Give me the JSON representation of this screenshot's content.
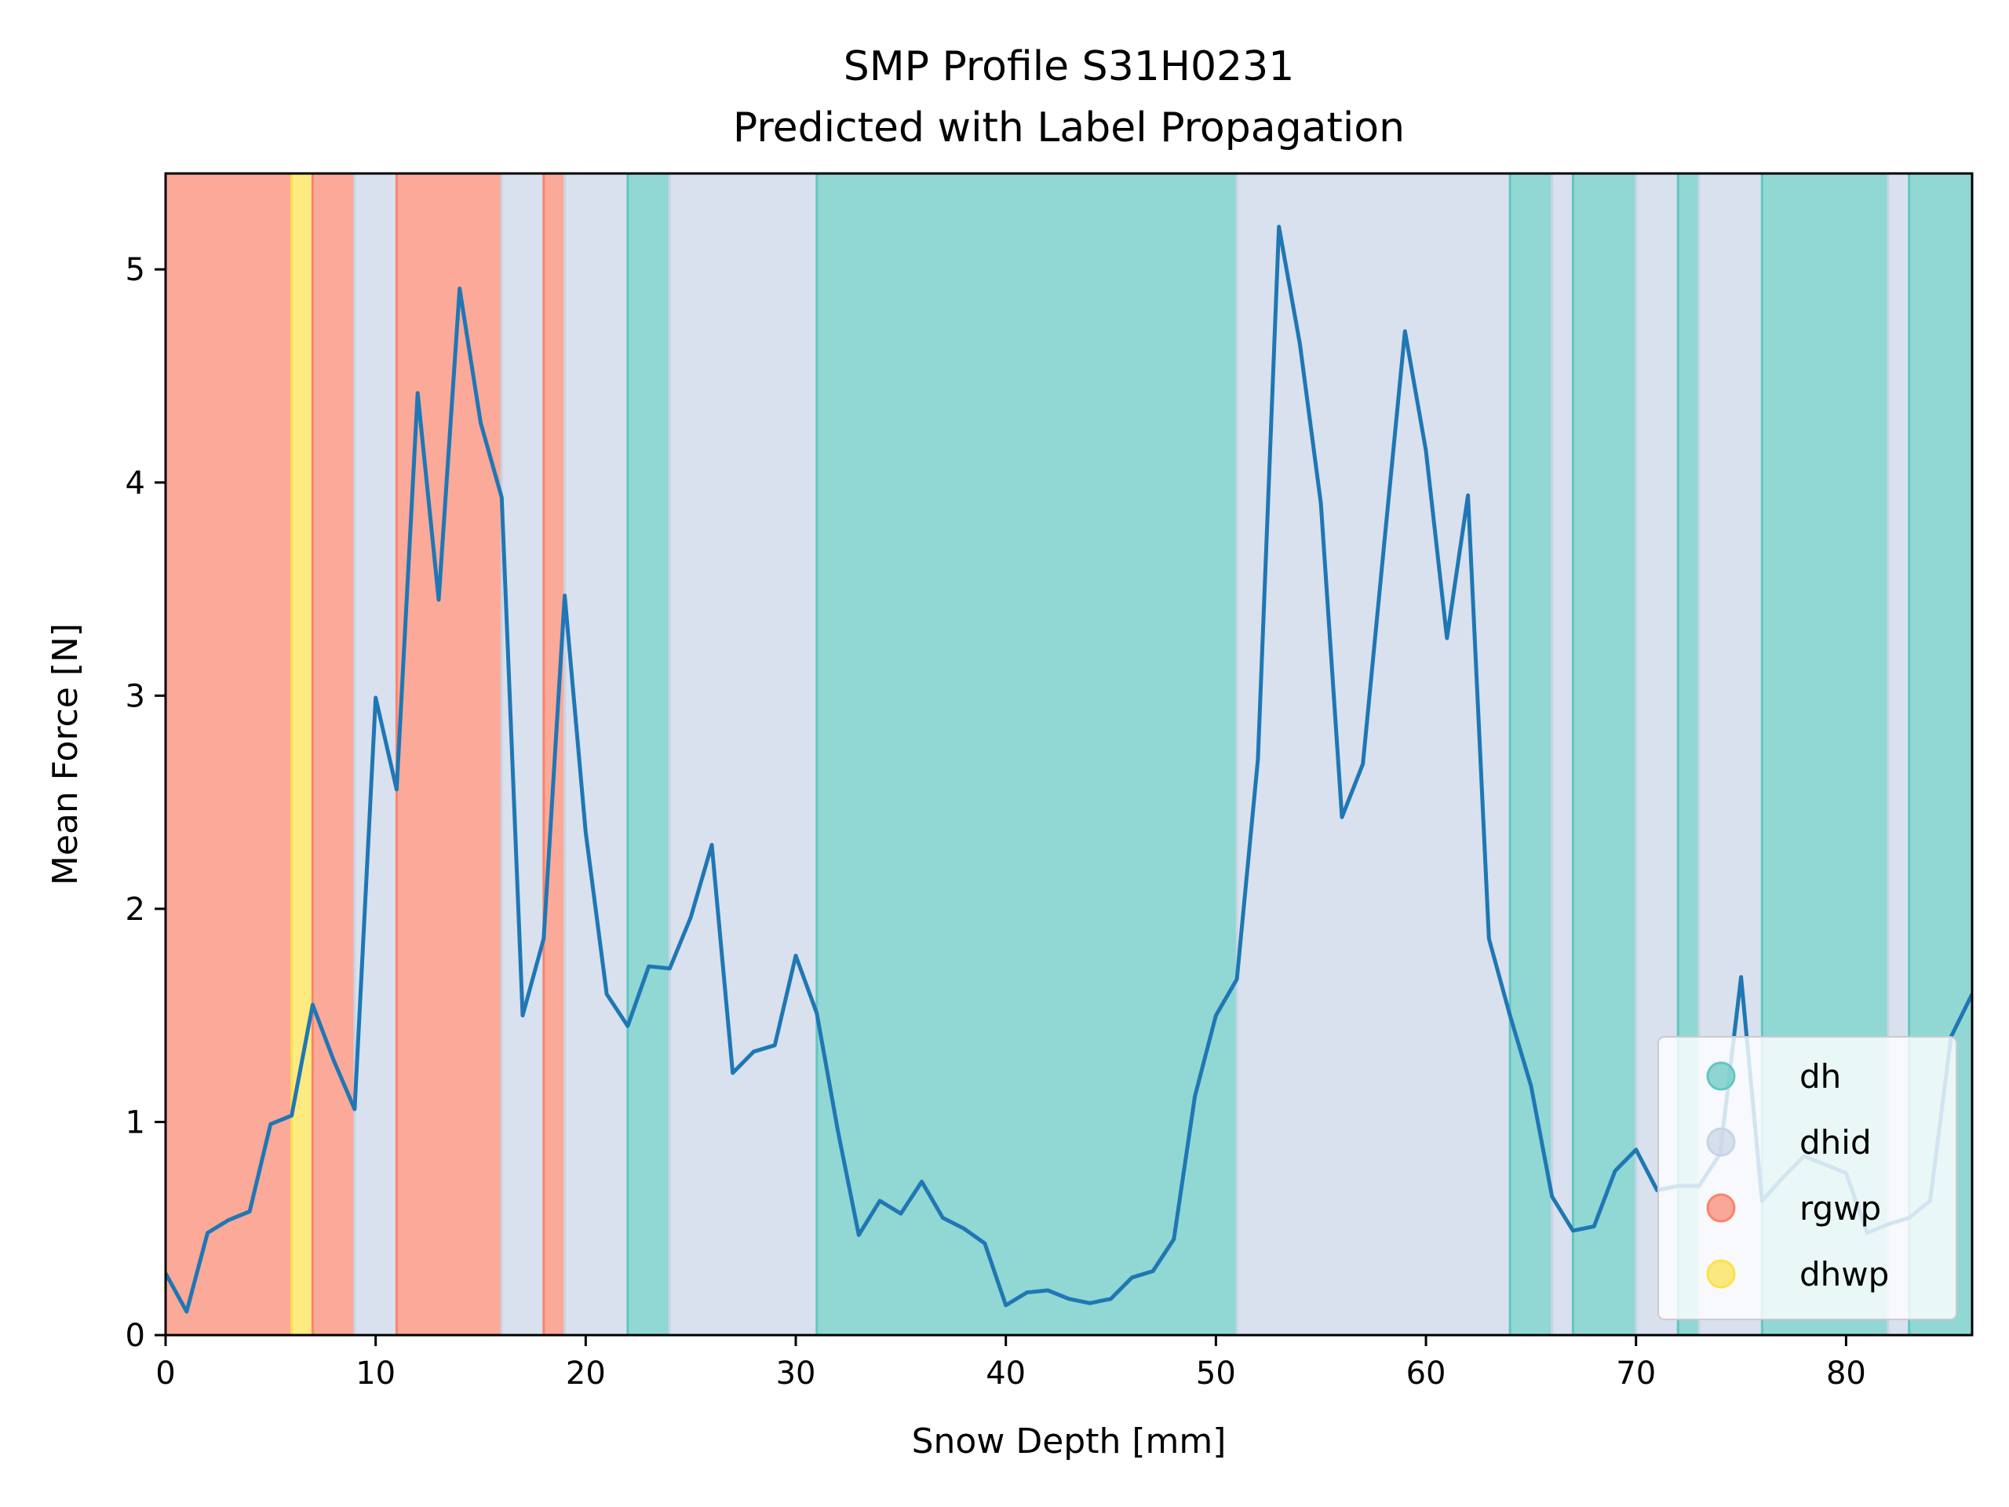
{
  "chart_data": {
    "type": "line",
    "title": "SMP Profile S31H0231",
    "subtitle": "Predicted with Label Propagation",
    "xlabel": "Snow Depth [mm]",
    "ylabel": "Mean Force [N]",
    "xlim": [
      0,
      86
    ],
    "ylim": [
      0,
      5.45
    ],
    "xticks": [
      0,
      10,
      20,
      30,
      40,
      50,
      60,
      70,
      80
    ],
    "yticks": [
      0,
      1,
      2,
      3,
      4,
      5
    ],
    "grid": false,
    "legend_position": "lower right",
    "line_color": "#1f77b4",
    "classes": [
      {
        "name": "dh",
        "color": "#62c6c1"
      },
      {
        "name": "dhid",
        "color": "#c8d4e6"
      },
      {
        "name": "rgwp",
        "color": "#f9846e"
      },
      {
        "name": "dhwp",
        "color": "#fce14a"
      }
    ],
    "segments": [
      {
        "start": 0,
        "end": 6,
        "label": "rgwp"
      },
      {
        "start": 6,
        "end": 7,
        "label": "dhwp"
      },
      {
        "start": 7,
        "end": 9,
        "label": "rgwp"
      },
      {
        "start": 9,
        "end": 11,
        "label": "dhid"
      },
      {
        "start": 11,
        "end": 16,
        "label": "rgwp"
      },
      {
        "start": 16,
        "end": 18,
        "label": "dhid"
      },
      {
        "start": 18,
        "end": 19,
        "label": "rgwp"
      },
      {
        "start": 19,
        "end": 22,
        "label": "dhid"
      },
      {
        "start": 22,
        "end": 24,
        "label": "dh"
      },
      {
        "start": 24,
        "end": 31,
        "label": "dhid"
      },
      {
        "start": 31,
        "end": 51,
        "label": "dh"
      },
      {
        "start": 51,
        "end": 64,
        "label": "dhid"
      },
      {
        "start": 64,
        "end": 66,
        "label": "dh"
      },
      {
        "start": 66,
        "end": 67,
        "label": "dhid"
      },
      {
        "start": 67,
        "end": 70,
        "label": "dh"
      },
      {
        "start": 70,
        "end": 72,
        "label": "dhid"
      },
      {
        "start": 72,
        "end": 73,
        "label": "dh"
      },
      {
        "start": 73,
        "end": 76,
        "label": "dhid"
      },
      {
        "start": 76,
        "end": 82,
        "label": "dh"
      },
      {
        "start": 82,
        "end": 83,
        "label": "dhid"
      },
      {
        "start": 83,
        "end": 86,
        "label": "dh"
      }
    ],
    "series": [
      {
        "x": [
          0,
          1,
          2,
          3,
          4,
          5,
          6,
          7,
          8,
          9,
          10,
          11,
          12,
          13,
          14,
          15,
          16,
          17,
          18,
          19,
          20,
          21,
          22,
          23,
          24,
          25,
          26,
          27,
          28,
          29,
          30,
          31,
          32,
          33,
          34,
          35,
          36,
          37,
          38,
          39,
          40,
          41,
          42,
          43,
          44,
          45,
          46,
          47,
          48,
          49,
          50,
          51,
          52,
          53,
          54,
          55,
          56,
          57,
          58,
          59,
          60,
          61,
          62,
          63,
          64,
          65,
          66,
          67,
          68,
          69,
          70,
          71,
          72,
          73,
          74,
          75,
          76,
          77,
          78,
          79,
          80,
          81,
          82,
          83,
          84,
          85,
          86
        ],
        "values": [
          0.29,
          0.11,
          0.48,
          0.54,
          0.58,
          0.99,
          1.03,
          1.55,
          1.29,
          1.06,
          2.99,
          2.56,
          4.42,
          3.45,
          4.91,
          4.28,
          3.93,
          1.5,
          1.86,
          3.47,
          2.36,
          1.6,
          1.45,
          1.73,
          1.72,
          1.96,
          2.3,
          1.23,
          1.33,
          1.36,
          1.78,
          1.51,
          0.96,
          0.47,
          0.63,
          0.57,
          0.72,
          0.55,
          0.5,
          0.43,
          0.14,
          0.2,
          0.21,
          0.17,
          0.15,
          0.17,
          0.27,
          0.3,
          0.45,
          1.12,
          1.5,
          1.67,
          2.7,
          5.2,
          4.65,
          3.9,
          2.43,
          2.68,
          3.7,
          4.71,
          4.15,
          3.27,
          3.94,
          1.86,
          1.5,
          1.17,
          0.65,
          0.49,
          0.51,
          0.77,
          0.87,
          0.68,
          0.7,
          0.7,
          0.85,
          1.68,
          0.63,
          0.74,
          0.84,
          0.8,
          0.76,
          0.48,
          0.52,
          0.55,
          0.63,
          1.4,
          1.6
        ]
      }
    ]
  }
}
